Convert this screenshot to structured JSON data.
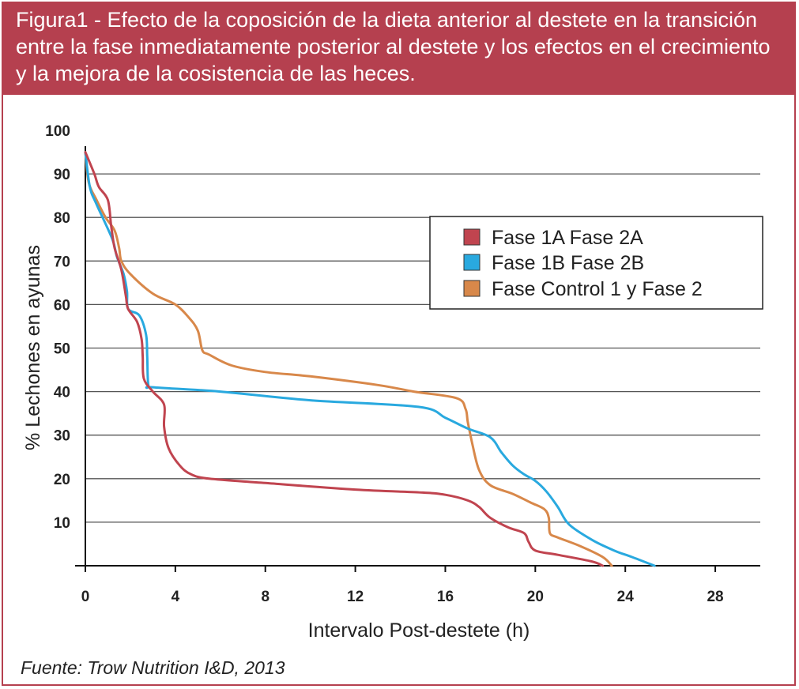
{
  "figure": {
    "title": "Figura1 - Efecto de la coposición de la dieta anterior al destete en la transición entre la fase inmediatamente posterior al destete y los efectos en el crecimiento y la mejora de la cosistencia de las heces.",
    "source": "Fuente: Trow Nutrition I&D, 2013"
  },
  "colors": {
    "frame": "#b5404f",
    "series_1A": "#c0444f",
    "series_1B": "#29a9df",
    "series_control": "#d8884a",
    "grid": "#555555"
  },
  "chart_data": {
    "type": "line",
    "title": "",
    "xlabel": "Intervalo Post-destete (h)",
    "ylabel": "% Lechones en ayunas",
    "xlim": [
      0,
      30
    ],
    "ylim": [
      0,
      100
    ],
    "x_ticks": [
      "0",
      "4",
      "8",
      "12",
      "16",
      "20",
      "24",
      "28"
    ],
    "y_ticks": [
      "10",
      "20",
      "30",
      "40",
      "50",
      "60",
      "70",
      "80",
      "90",
      "100"
    ],
    "grid": "horizontal",
    "legend_position": "top-right",
    "series": [
      {
        "name": "Fase 1A Fase 2A",
        "color": "#c0444f",
        "points": [
          [
            0,
            95
          ],
          [
            0.4,
            90
          ],
          [
            0.6,
            87
          ],
          [
            1.0,
            84
          ],
          [
            1.15,
            78
          ],
          [
            1.3,
            73
          ],
          [
            1.6,
            68
          ],
          [
            1.8,
            62
          ],
          [
            1.9,
            59
          ],
          [
            2.3,
            56
          ],
          [
            2.5,
            52
          ],
          [
            2.55,
            48
          ],
          [
            2.6,
            43
          ],
          [
            3.0,
            40
          ],
          [
            3.5,
            37
          ],
          [
            3.5,
            32
          ],
          [
            3.7,
            27
          ],
          [
            4.2,
            23
          ],
          [
            4.7,
            21
          ],
          [
            5.5,
            20
          ],
          [
            8,
            19
          ],
          [
            12,
            17.5
          ],
          [
            15,
            16.8
          ],
          [
            16,
            16.3
          ],
          [
            17,
            15
          ],
          [
            17.5,
            13.5
          ],
          [
            18,
            11
          ],
          [
            18.8,
            8.8
          ],
          [
            19.5,
            7.5
          ],
          [
            19.7,
            5.5
          ],
          [
            20,
            3.5
          ],
          [
            21,
            2.5
          ],
          [
            22.5,
            1
          ],
          [
            23,
            0
          ]
        ]
      },
      {
        "name": "Fase 1B Fase 2B",
        "color": "#29a9df",
        "points": [
          [
            0,
            95
          ],
          [
            0.2,
            87
          ],
          [
            0.5,
            83
          ],
          [
            1.2,
            75
          ],
          [
            1.4,
            71
          ],
          [
            1.7,
            67
          ],
          [
            1.85,
            63
          ],
          [
            1.9,
            59
          ],
          [
            2.4,
            57.5
          ],
          [
            2.7,
            53
          ],
          [
            2.75,
            48
          ],
          [
            2.8,
            41.5
          ],
          [
            3,
            41
          ],
          [
            6,
            40
          ],
          [
            10,
            38
          ],
          [
            14.8,
            36.5
          ],
          [
            16,
            34
          ],
          [
            17,
            31.5
          ],
          [
            18,
            29.5
          ],
          [
            18.5,
            26
          ],
          [
            19,
            23
          ],
          [
            19.5,
            21
          ],
          [
            20,
            19.5
          ],
          [
            20.5,
            17
          ],
          [
            21,
            13.5
          ],
          [
            21.5,
            9.5
          ],
          [
            22.5,
            6
          ],
          [
            23.5,
            3.5
          ],
          [
            24.3,
            2
          ],
          [
            25.3,
            0
          ]
        ]
      },
      {
        "name": "Fase Control 1 y Fase 2",
        "color": "#d8884a",
        "points": [
          [
            0,
            95
          ],
          [
            0.15,
            88
          ],
          [
            0.5,
            84
          ],
          [
            0.9,
            80
          ],
          [
            1.3,
            77
          ],
          [
            1.5,
            73
          ],
          [
            1.6,
            70
          ],
          [
            2,
            67
          ],
          [
            3,
            62.5
          ],
          [
            4,
            60
          ],
          [
            4.6,
            57
          ],
          [
            5,
            54
          ],
          [
            5.2,
            49.5
          ],
          [
            5.5,
            48.5
          ],
          [
            6.5,
            46
          ],
          [
            8,
            44.5
          ],
          [
            10,
            43.5
          ],
          [
            13,
            41.5
          ],
          [
            14.6,
            40
          ],
          [
            16.5,
            38.5
          ],
          [
            16.9,
            36
          ],
          [
            17,
            33
          ],
          [
            17.2,
            28
          ],
          [
            17.5,
            22
          ],
          [
            18,
            18.5
          ],
          [
            19,
            16.5
          ],
          [
            19.8,
            14.5
          ],
          [
            20.4,
            13
          ],
          [
            20.6,
            11
          ],
          [
            20.65,
            7.5
          ],
          [
            21,
            6.5
          ],
          [
            22,
            4.5
          ],
          [
            23,
            2
          ],
          [
            23.4,
            0
          ]
        ]
      }
    ]
  }
}
